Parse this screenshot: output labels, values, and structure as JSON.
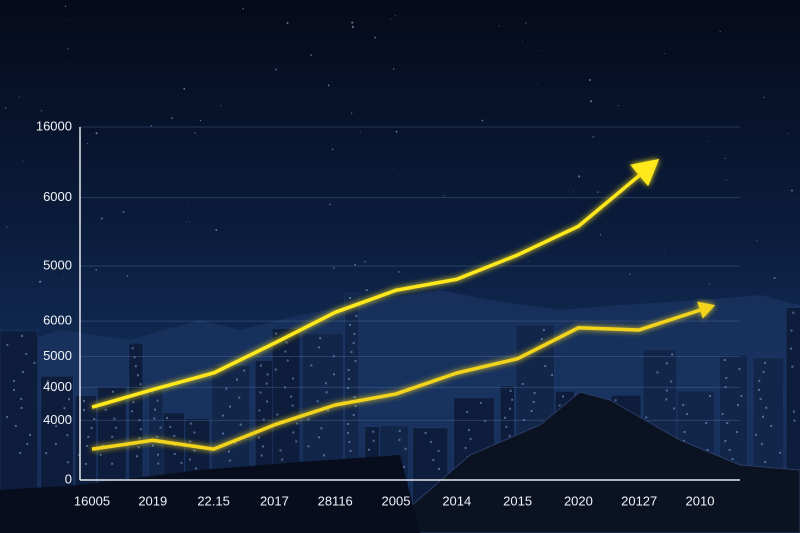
{
  "chart_data": {
    "type": "line",
    "categories": [
      "16005",
      "2019",
      "22.15",
      "2017",
      "28116",
      "2005",
      "2014",
      "2015",
      "2020",
      "20127",
      "2010"
    ],
    "series": [
      {
        "color": "#ffe81a",
        "values": [
          3300,
          4100,
          4850,
          6200,
          7600,
          8600,
          9100,
          10200,
          11500,
          13800,
          null
        ]
      },
      {
        "color": "#f2d41c",
        "values": [
          1400,
          1800,
          1400,
          2500,
          3400,
          3900,
          4850,
          5500,
          6900,
          6800,
          7700
        ]
      }
    ],
    "ylim": [
      0,
      16000
    ],
    "yticks": [
      0,
      {
        "value": 2700,
        "label": "4000"
      },
      {
        "value": 4200,
        "label": "4000"
      },
      {
        "value": 5600,
        "label": "5000"
      },
      {
        "value": 7200,
        "label": "6000"
      },
      {
        "value": 9700,
        "label": "5000"
      },
      {
        "value": 12800,
        "label": "6000"
      },
      16000
    ],
    "grid": true
  }
}
